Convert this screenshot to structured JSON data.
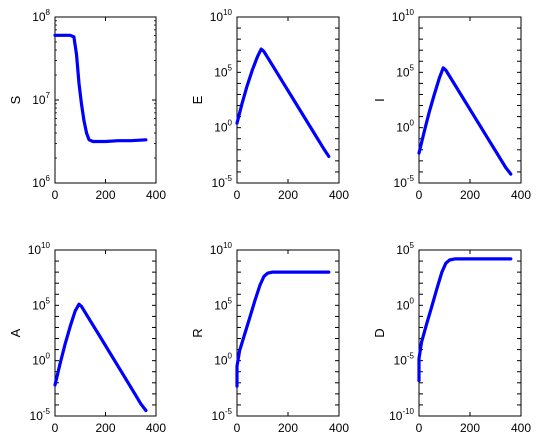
{
  "chart_data": [
    {
      "type": "line",
      "ylabel": "S",
      "yscale": "log",
      "xlim": [
        0,
        400
      ],
      "ylim_exp": [
        6,
        8
      ],
      "yticks_exp": [
        6,
        7,
        8
      ],
      "xticks": [
        0,
        200,
        400
      ],
      "color": "#0000ff",
      "series": [
        {
          "x": [
            0,
            60,
            75,
            85,
            95,
            105,
            115,
            125,
            135,
            150,
            170,
            200,
            250,
            300,
            360
          ],
          "log10_y": [
            7.78,
            7.78,
            7.76,
            7.55,
            7.2,
            6.95,
            6.75,
            6.6,
            6.52,
            6.5,
            6.5,
            6.5,
            6.51,
            6.51,
            6.52
          ]
        }
      ]
    },
    {
      "type": "line",
      "ylabel": "E",
      "yscale": "log",
      "xlim": [
        0,
        400
      ],
      "ylim_exp": [
        -5,
        10
      ],
      "yticks_exp": [
        -5,
        0,
        5,
        10
      ],
      "xticks": [
        0,
        200,
        400
      ],
      "color": "#0000ff",
      "series": [
        {
          "x": [
            0,
            20,
            40,
            60,
            80,
            95,
            105,
            140,
            180,
            220,
            260,
            300,
            340,
            360
          ],
          "log10_y": [
            0.4,
            2.2,
            3.8,
            5.2,
            6.4,
            7.1,
            6.9,
            5.6,
            4.1,
            2.6,
            1.1,
            -0.4,
            -1.9,
            -2.6
          ]
        }
      ]
    },
    {
      "type": "line",
      "ylabel": "I",
      "yscale": "log",
      "xlim": [
        0,
        400
      ],
      "ylim_exp": [
        -5,
        10
      ],
      "yticks_exp": [
        -5,
        0,
        5,
        10
      ],
      "xticks": [
        0,
        200,
        400
      ],
      "color": "#0000ff",
      "series": [
        {
          "x": [
            0,
            20,
            40,
            60,
            80,
            95,
            105,
            140,
            180,
            220,
            260,
            300,
            340,
            360
          ],
          "log10_y": [
            -2.3,
            -0.4,
            1.4,
            3.0,
            4.5,
            5.4,
            5.2,
            3.9,
            2.4,
            0.9,
            -0.6,
            -2.1,
            -3.6,
            -4.2
          ]
        }
      ]
    },
    {
      "type": "line",
      "ylabel": "A",
      "yscale": "log",
      "xlim": [
        0,
        400
      ],
      "ylim_exp": [
        -5,
        10
      ],
      "yticks_exp": [
        -5,
        0,
        5,
        10
      ],
      "xticks": [
        0,
        200,
        400
      ],
      "color": "#0000ff",
      "series": [
        {
          "x": [
            0,
            20,
            40,
            60,
            80,
            95,
            105,
            140,
            180,
            220,
            260,
            300,
            340,
            360
          ],
          "log10_y": [
            -2.2,
            -0.3,
            1.5,
            3.1,
            4.5,
            5.1,
            4.9,
            3.6,
            2.1,
            0.6,
            -0.9,
            -2.4,
            -3.9,
            -4.5
          ]
        }
      ]
    },
    {
      "type": "line",
      "ylabel": "R",
      "yscale": "log",
      "xlim": [
        0,
        400
      ],
      "ylim_exp": [
        -5,
        10
      ],
      "yticks_exp": [
        -5,
        0,
        5,
        10
      ],
      "xticks": [
        0,
        200,
        400
      ],
      "color": "#0000ff",
      "series": [
        {
          "x": [
            0,
            0,
            10,
            30,
            50,
            70,
            90,
            105,
            120,
            140,
            200,
            300,
            360
          ],
          "log10_y": [
            -2.3,
            -0.5,
            0.9,
            2.4,
            3.9,
            5.4,
            6.8,
            7.6,
            7.9,
            8.0,
            8.0,
            8.0,
            8.0
          ]
        }
      ]
    },
    {
      "type": "line",
      "ylabel": "D",
      "yscale": "log",
      "xlim": [
        0,
        400
      ],
      "ylim_exp": [
        -10,
        5
      ],
      "yticks_exp": [
        -10,
        -5,
        0,
        5
      ],
      "xticks": [
        0,
        200,
        400
      ],
      "color": "#0000ff",
      "series": [
        {
          "x": [
            0,
            0,
            10,
            30,
            50,
            70,
            90,
            105,
            120,
            140,
            200,
            300,
            360
          ],
          "log10_y": [
            -6.8,
            -4.8,
            -3.3,
            -1.7,
            -0.1,
            1.5,
            3.0,
            3.8,
            4.1,
            4.2,
            4.2,
            4.2,
            4.2
          ]
        }
      ]
    }
  ]
}
